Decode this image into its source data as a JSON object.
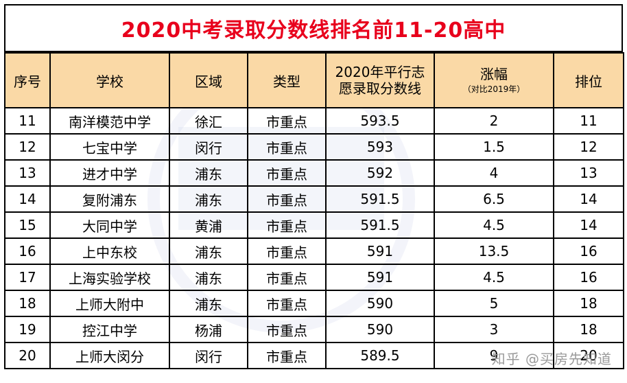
{
  "title": "2020中考录取分数线排名前11-20高中",
  "headers": {
    "no": "序号",
    "school": "学校",
    "district": "区域",
    "type": "类型",
    "score_line1": "2020年平行志",
    "score_line2": "愿录取分数线",
    "rise_main": "涨幅",
    "rise_sub": "（对比2019年）",
    "rank": "排位"
  },
  "rows": [
    {
      "no": "11",
      "school": "南洋模范中学",
      "district": "徐汇",
      "type": "市重点",
      "score": "593.5",
      "rise": "2",
      "rank": "11"
    },
    {
      "no": "12",
      "school": "七宝中学",
      "district": "闵行",
      "type": "市重点",
      "score": "593",
      "rise": "1.5",
      "rank": "12"
    },
    {
      "no": "13",
      "school": "进才中学",
      "district": "浦东",
      "type": "市重点",
      "score": "592",
      "rise": "4",
      "rank": "13"
    },
    {
      "no": "14",
      "school": "复附浦东",
      "district": "浦东",
      "type": "市重点",
      "score": "591.5",
      "rise": "6.5",
      "rank": "14"
    },
    {
      "no": "15",
      "school": "大同中学",
      "district": "黄浦",
      "type": "市重点",
      "score": "591.5",
      "rise": "4.5",
      "rank": "14"
    },
    {
      "no": "16",
      "school": "上中东校",
      "district": "浦东",
      "type": "市重点",
      "score": "591",
      "rise": "13.5",
      "rank": "16"
    },
    {
      "no": "17",
      "school": "上海实验学校",
      "district": "浦东",
      "type": "市重点",
      "score": "591",
      "rise": "4.5",
      "rank": "16"
    },
    {
      "no": "18",
      "school": "上师大附中",
      "district": "浦东",
      "type": "市重点",
      "score": "590",
      "rise": "5",
      "rank": "18"
    },
    {
      "no": "19",
      "school": "控江中学",
      "district": "杨浦",
      "type": "市重点",
      "score": "590",
      "rise": "3",
      "rank": "18"
    },
    {
      "no": "20",
      "school": "上师大闵分",
      "district": "闵行",
      "type": "市重点",
      "score": "589.5",
      "rise": "9",
      "rank": "20"
    }
  ],
  "watermark": "知乎 @买房先知道"
}
